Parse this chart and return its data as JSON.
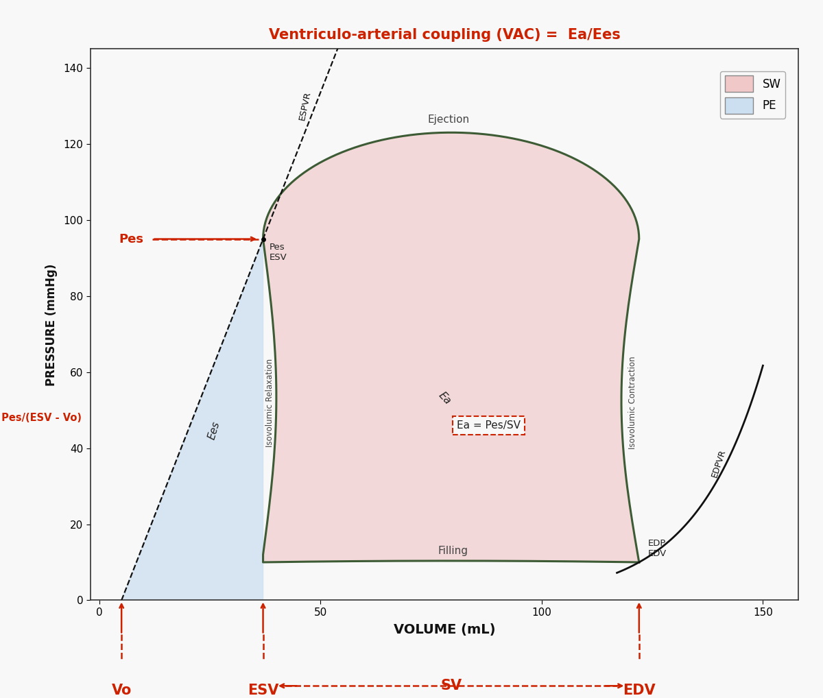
{
  "title": "Ventriculo-arterial coupling (VAC) =  Ea/Ees",
  "title_color": "#cc2200",
  "xlabel": "VOLUME (mL)",
  "ylabel": "PRESSURE (mmHg)",
  "xlim": [
    -2,
    158
  ],
  "ylim": [
    0,
    145
  ],
  "xticks": [
    0,
    50,
    100,
    150
  ],
  "yticks": [
    0,
    20,
    40,
    60,
    80,
    100,
    120,
    140
  ],
  "Vo": 5,
  "ESV": 37,
  "EDV": 122,
  "Pes": 95,
  "EDP": 10,
  "SW_fill_color": "#f0c8c8",
  "PE_fill_color": "#ccdff0",
  "loop_edge_color": "#3d5c35",
  "background_color": "#f8f8f8",
  "red_color": "#cc2200",
  "black": "#222222",
  "gray_text": "#444444"
}
